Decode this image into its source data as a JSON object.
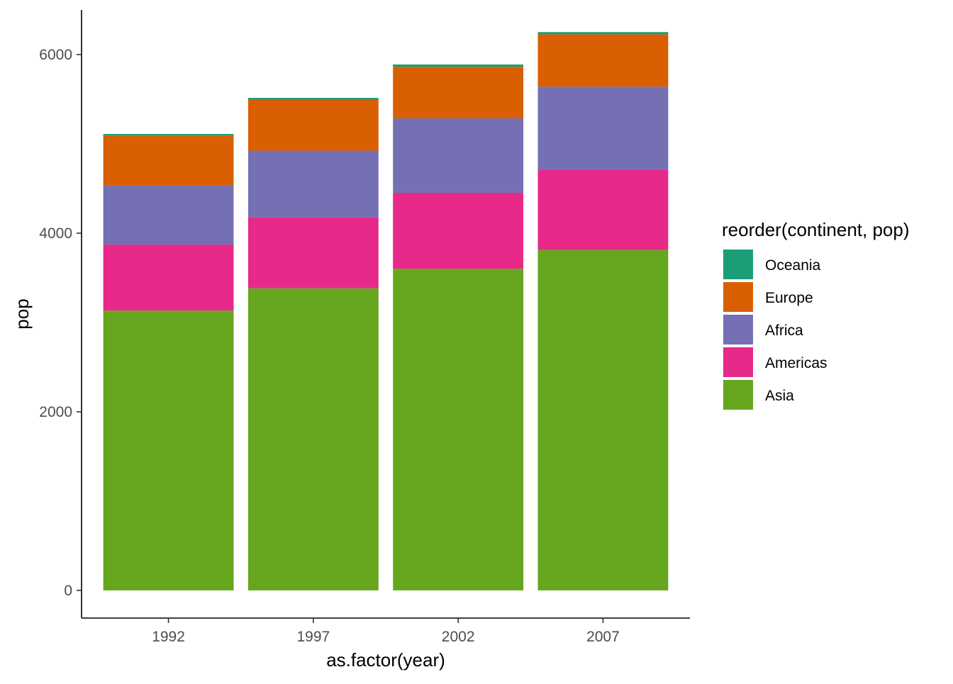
{
  "chart_data": {
    "type": "bar",
    "stacked": true,
    "categories": [
      "1992",
      "1997",
      "2002",
      "2007"
    ],
    "series": [
      {
        "name": "Asia",
        "color": "#66a61e",
        "values": [
          3133,
          3383,
          3602,
          3812
        ]
      },
      {
        "name": "Americas",
        "color": "#e7298a",
        "values": [
          739,
          797,
          850,
          899
        ]
      },
      {
        "name": "Africa",
        "color": "#7570b3",
        "values": [
          660,
          744,
          834,
          930
        ]
      },
      {
        "name": "Europe",
        "color": "#d95f02",
        "values": [
          558,
          568,
          578,
          586
        ]
      },
      {
        "name": "Oceania",
        "color": "#1b9e77",
        "values": [
          21,
          23,
          25,
          25
        ]
      }
    ],
    "legend_order": [
      "Oceania",
      "Europe",
      "Africa",
      "Americas",
      "Asia"
    ],
    "xlabel": "as.factor(year)",
    "ylabel": "pop",
    "legend_title": "reorder(continent, pop)",
    "yticks": [
      0,
      2000,
      4000,
      6000
    ],
    "ylim": [
      -310,
      6500
    ],
    "legend_position": "right",
    "grid": false
  }
}
